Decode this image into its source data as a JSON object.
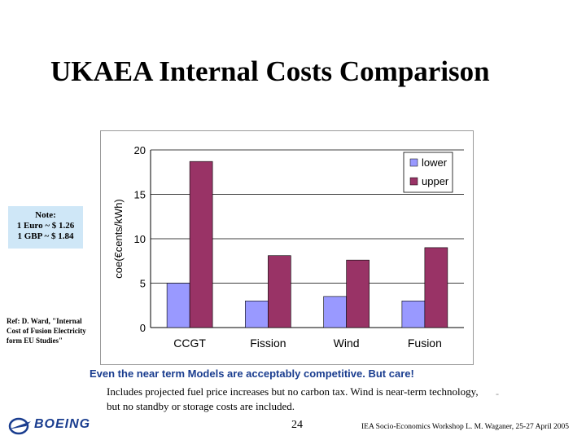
{
  "title": "UKAEA Internal Costs Comparison",
  "note": {
    "heading": "Note:",
    "line1": "1 Euro ~ $ 1.26",
    "line2": "1 GBP ~ $ 1.84"
  },
  "reference": "Ref: D. Ward, \"Internal Cost of Fusion Electricity form EU Studies\"",
  "caption": "Even the near term Models are acceptably competitive. But care!",
  "includes_text": "Includes projected fuel price increases but no carbon tax. Wind is near-term technology, but no standby or storage costs are included.",
  "dash": "-",
  "logo_text": "BOEING",
  "page_number": "24",
  "footer": "IEA Socio-Economics Workshop  L. M. Waganer, 25-27 April 2005",
  "colors": {
    "lower": "#9999ff",
    "upper": "#993366",
    "caption": "#1a3d8f",
    "note_bg": "#cfe7f7"
  },
  "chart_data": {
    "type": "bar",
    "categories": [
      "CCGT",
      "Fission",
      "Wind",
      "Fusion"
    ],
    "series": [
      {
        "name": "lower",
        "values": [
          5.0,
          3.0,
          3.5,
          3.0
        ]
      },
      {
        "name": "upper",
        "values": [
          18.7,
          8.1,
          7.6,
          9.0
        ]
      }
    ],
    "ylabel": "coe(€cents/kWh)",
    "ylim": [
      0,
      20
    ],
    "yticks": [
      0,
      5,
      10,
      15,
      20
    ],
    "grid": true,
    "legend": "top-right"
  }
}
